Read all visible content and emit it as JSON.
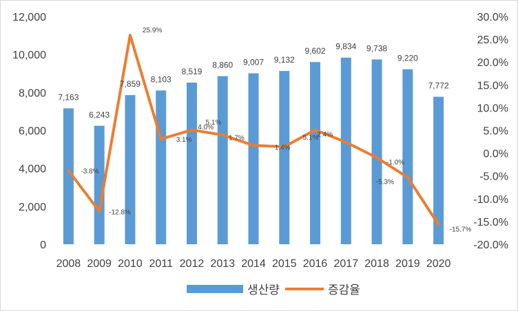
{
  "chart_data": {
    "type": "bar",
    "categories": [
      "2008",
      "2009",
      "2010",
      "2011",
      "2012",
      "2013",
      "2014",
      "2015",
      "2016",
      "2017",
      "2018",
      "2019",
      "2020"
    ],
    "series": [
      {
        "name": "생산량",
        "type": "bar",
        "axis": "left",
        "color": "#5B9BD5",
        "values": [
          7163,
          6243,
          7859,
          8103,
          8519,
          8860,
          9007,
          9132,
          9602,
          9834,
          9738,
          9220,
          7772
        ],
        "labels": [
          "7,163",
          "6,243",
          "7,859",
          "8,103",
          "8,519",
          "8,860",
          "9,007",
          "9,132",
          "9,602",
          "9,834",
          "9,738",
          "9,220",
          "7,772"
        ]
      },
      {
        "name": "증감율",
        "type": "line",
        "axis": "right",
        "color": "#ED7D31",
        "values": [
          -3.8,
          -12.8,
          25.9,
          3.1,
          5.1,
          4.0,
          1.7,
          1.4,
          5.1,
          2.4,
          -1.0,
          -5.3,
          -15.7
        ],
        "labels": [
          "-3.8%",
          "-12.8%",
          "25.9%",
          "3.1%",
          "5.1%",
          "4.0%",
          "1.7%",
          "1.4%",
          "5.1%",
          "2.4%",
          "-1.0%",
          "-5.3%",
          "-15.7%"
        ]
      }
    ],
    "y_left": {
      "lim": [
        0,
        12000
      ],
      "ticks": [
        0,
        2000,
        4000,
        6000,
        8000,
        10000,
        12000
      ],
      "tick_labels": [
        "0",
        "2,000",
        "4,000",
        "6,000",
        "8,000",
        "10,000",
        "12,000"
      ]
    },
    "y_right": {
      "lim": [
        -20,
        30
      ],
      "ticks": [
        -20,
        -15,
        -10,
        -5,
        0,
        5,
        10,
        15,
        20,
        25,
        30
      ],
      "tick_labels": [
        "-20.0%",
        "-15.0%",
        "-10.0%",
        "-5.0%",
        "0.0%",
        "5.0%",
        "10.0%",
        "15.0%",
        "20.0%",
        "25.0%",
        "30.0%"
      ]
    },
    "grid": false,
    "legend": "bottom",
    "title": "",
    "xlabel": "",
    "ylabel": ""
  }
}
